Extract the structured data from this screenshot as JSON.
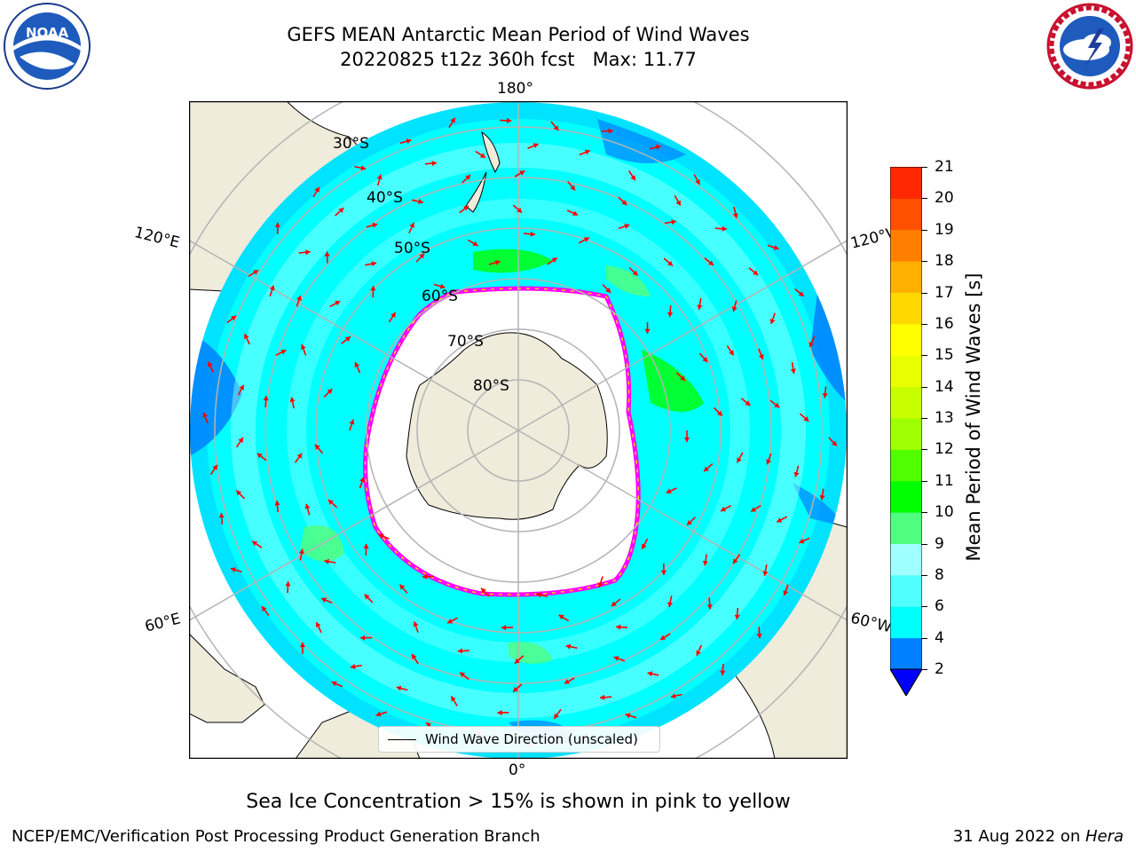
{
  "header": {
    "title_line1": "GEFS MEAN Antarctic Mean Period of Wind Waves",
    "title_line2": "20220825 t12z 360h fcst   Max: 11.77"
  },
  "logos": {
    "left": {
      "icon": "noaa-logo",
      "text": "NOAA"
    },
    "right": {
      "icon": "nws-logo",
      "text": "NATIONAL WEATHER SERVICE"
    }
  },
  "map": {
    "longitude_labels": {
      "top": "180°",
      "bottom": "0°",
      "left_upper": "120°E",
      "left_lower": "60°E",
      "right_upper": "120°W",
      "right_lower": "60°W"
    },
    "latitude_labels": [
      "30°S",
      "40°S",
      "50°S",
      "60°S",
      "70°S",
      "80°S"
    ],
    "legend_label": "Wind Wave Direction (unscaled)",
    "colors": {
      "land": "#efecdc",
      "ocean_base": "#00ffff",
      "sea_ice": "#ff00ff",
      "arrow": "#ff0000",
      "grid": "#b4b4b4"
    }
  },
  "colorbar": {
    "label": "Mean Period of Wind Waves [s]",
    "ticks": [
      "2",
      "4",
      "6",
      "8",
      "9",
      "10",
      "11",
      "12",
      "13",
      "14",
      "15",
      "16",
      "17",
      "18",
      "19",
      "20",
      "21"
    ],
    "colors": [
      "#0080ff",
      "#00ffff",
      "#50ffff",
      "#a0ffff",
      "#50ff80",
      "#00ff00",
      "#50ff00",
      "#a0ff00",
      "#c8ff00",
      "#e8ff00",
      "#ffff00",
      "#ffd800",
      "#ffb000",
      "#ff8000",
      "#ff5000",
      "#ff2800"
    ],
    "extend_below_color": "#0000ff"
  },
  "caption": "Sea Ice Concentration > 15% is shown in pink to yellow",
  "footer": {
    "left": "NCEP/EMC/Verification Post Processing Product Generation Branch",
    "right_date": "31 Aug 2022 on ",
    "right_machine": "Hera"
  }
}
